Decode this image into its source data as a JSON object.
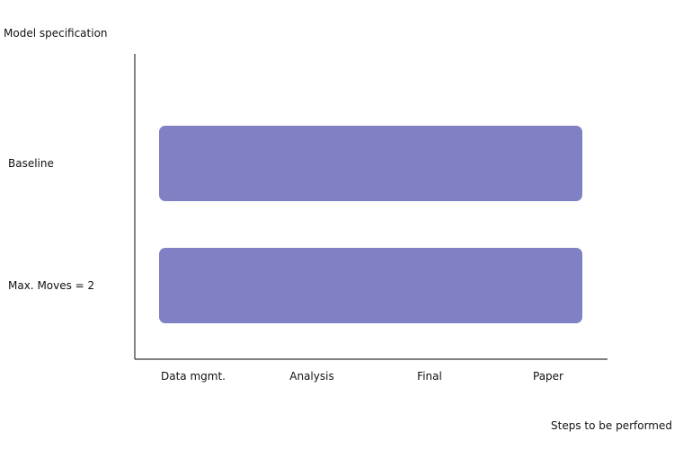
{
  "chart_data": {
    "type": "bar",
    "orientation": "horizontal",
    "ylabel": "Model specification",
    "xlabel": "Steps to be performed",
    "x_categories": [
      "Data mgmt.",
      "Analysis",
      "Final",
      "Paper"
    ],
    "categories": [
      "Baseline",
      "Max. Moves = 2"
    ],
    "series": [
      {
        "values": [
          {
            "start": "Data mgmt.",
            "end": "Paper"
          },
          {
            "start": "Data mgmt.",
            "end": "Paper"
          }
        ]
      }
    ],
    "colors": {
      "bar": "#8080c4",
      "axis": "#333333",
      "text": "#111111"
    },
    "grid": false,
    "legend": "none"
  }
}
